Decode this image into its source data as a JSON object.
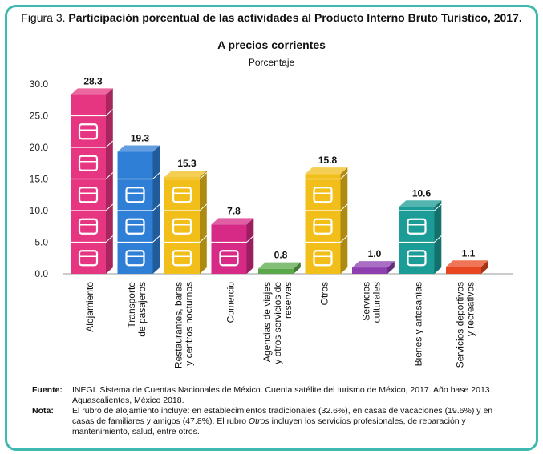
{
  "header": {
    "figure_label": "Figura 3.",
    "title_bold": "Participación porcentual de las actividades al Producto Interno Bruto Turístico, 2017.",
    "subtitle": "A precios corrientes",
    "unit": "Porcentaje"
  },
  "chart_data": {
    "type": "bar",
    "title": "Participación porcentual de las actividades al Producto Interno Bruto Turístico, 2017.",
    "subtitle": "A precios corrientes",
    "ylabel": "Porcentaje",
    "xlabel": "",
    "ylim": [
      0,
      30
    ],
    "yticks": [
      "0.0",
      "5.0",
      "10.0",
      "15.0",
      "20.0",
      "25.0",
      "30.0"
    ],
    "categories": [
      [
        "Alojamiento"
      ],
      [
        "Transporte",
        "de pasajeros"
      ],
      [
        "Restaurantes, bares",
        "y centros nocturnos"
      ],
      [
        "Comercio"
      ],
      [
        "Agencias de viajes",
        "y otros servicios de",
        "reservas"
      ],
      [
        "Otros"
      ],
      [
        "Servicios",
        "culturales"
      ],
      [
        "Bienes y artesanías"
      ],
      [
        "Servicios deportivos",
        "y recreativos"
      ]
    ],
    "values": [
      28.3,
      19.3,
      15.3,
      7.8,
      0.8,
      15.8,
      1.0,
      10.6,
      1.1
    ],
    "value_labels": [
      "28.3",
      "19.3",
      "15.3",
      "7.8",
      "0.8",
      "15.8",
      "1.0",
      "10.6",
      "1.1"
    ],
    "colors": [
      "#e63581",
      "#2f7fd6",
      "#f2bf1a",
      "#d62a86",
      "#5aa84a",
      "#f2bf1a",
      "#8d3fb0",
      "#1b9c96",
      "#e8471f"
    ],
    "icons": [
      "suitcase-icon",
      "airplane-icon",
      "chef-hat-icon",
      "shopping-cart-icon",
      "ticket-icon",
      "heart-pulse-icon",
      "theater-icon",
      "vase-icon",
      "sports-icon"
    ]
  },
  "notes": {
    "source_label": "Fuente:",
    "source_text": "INEGI. Sistema de Cuentas Nacionales de México. Cuenta satélite del turismo de México, 2017. Año base 2013. Aguascalientes, México 2018.",
    "note_label": "Nota:",
    "note_text_1": "El rubro de alojamiento incluye: en establecimientos tradicionales (32.6%), en casas de vacaciones (19.6%) y en casas de familiares y amigos (47.8%). El rubro ",
    "note_text_italic": "Otros",
    "note_text_2": " incluyen los servicios profesionales, de reparación y mantenimiento, salud, entre otros."
  }
}
